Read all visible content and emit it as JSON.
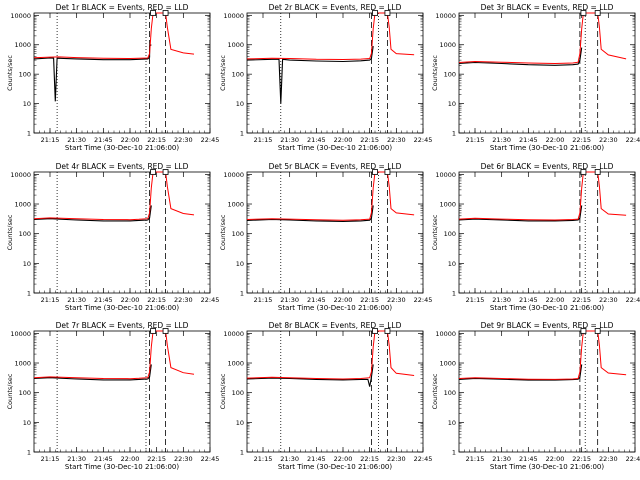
{
  "colors": {
    "events": "#000000",
    "lld": "#ff0000",
    "background": "#ffffff"
  },
  "chart_data": [
    {
      "type": "line",
      "title": "Det 1r BLACK = Events, RED = LLD",
      "xlabel": "Start Time (30-Dec-10 21:06:00)",
      "ylabel": "Counts/sec",
      "yscale": "log",
      "ylim": [
        1,
        12000
      ],
      "xlim": [
        "21:06",
        "22:45"
      ],
      "x_ticks": [
        "21:15",
        "21:30",
        "21:45",
        "22:00",
        "22:15",
        "22:30",
        "22:45"
      ],
      "y_ticks": [
        "1",
        "10",
        "100",
        "1000",
        "10000"
      ],
      "dotted_vlines": [
        "21:19",
        "22:09"
      ],
      "dashed_vlines": [
        "22:11",
        "22:20"
      ],
      "series": [
        {
          "name": "BLACK = Events",
          "x": [
            "21:06",
            "21:15",
            "21:17",
            "21:18",
            "21:19",
            "21:30",
            "21:45",
            "22:00",
            "22:05",
            "22:10",
            "22:11",
            "22:11",
            "22:12"
          ],
          "y": [
            330,
            355,
            350,
            12,
            350,
            330,
            310,
            310,
            320,
            330,
            380,
            900,
            1000
          ]
        },
        {
          "name": "RED = LLD",
          "x": [
            "21:06",
            "21:15",
            "21:20",
            "21:30",
            "21:45",
            "22:00",
            "22:05",
            "22:10",
            "22:11",
            "22:12",
            "22:13",
            "22:15",
            "22:18",
            "22:20",
            "22:21",
            "22:23",
            "22:30",
            "22:36"
          ],
          "y": [
            360,
            380,
            385,
            365,
            345,
            340,
            345,
            355,
            500,
            3500,
            12000,
            12000,
            12000,
            12000,
            4000,
            700,
            530,
            480
          ]
        }
      ]
    },
    {
      "type": "line",
      "title": "Det 2r BLACK = Events, RED = LLD",
      "xlabel": "Start Time (30-Dec-10 21:06:00)",
      "ylabel": "Counts/sec",
      "yscale": "log",
      "ylim": [
        1,
        12000
      ],
      "xlim": [
        "21:06",
        "22:45"
      ],
      "x_ticks": [
        "21:15",
        "21:30",
        "21:45",
        "22:00",
        "22:15",
        "22:30",
        "22:45"
      ],
      "y_ticks": [
        "1",
        "10",
        "100",
        "1000",
        "10000"
      ],
      "dotted_vlines": [
        "21:25",
        "22:20"
      ],
      "dashed_vlines": [
        "22:16",
        "22:25"
      ],
      "series": [
        {
          "name": "BLACK = Events",
          "x": [
            "21:06",
            "21:20",
            "21:24",
            "21:25",
            "21:26",
            "21:30",
            "21:45",
            "22:00",
            "22:10",
            "22:15",
            "22:16",
            "22:17"
          ],
          "y": [
            300,
            320,
            320,
            10,
            320,
            300,
            280,
            270,
            285,
            300,
            340,
            900
          ]
        },
        {
          "name": "RED = LLD",
          "x": [
            "21:06",
            "21:20",
            "21:30",
            "21:45",
            "22:00",
            "22:10",
            "22:15",
            "22:16",
            "22:17",
            "22:18",
            "22:25",
            "22:26",
            "22:27",
            "22:30",
            "22:40"
          ],
          "y": [
            330,
            345,
            340,
            320,
            315,
            325,
            340,
            500,
            3500,
            12000,
            12000,
            4000,
            700,
            500,
            460
          ]
        }
      ]
    },
    {
      "type": "line",
      "title": "Det 3r BLACK = Events, RED = LLD",
      "xlabel": "Start Time (30-Dec-10 21:06:00)",
      "ylabel": "Counts/sec",
      "yscale": "log",
      "ylim": [
        1,
        12000
      ],
      "xlim": [
        "21:06",
        "22:45"
      ],
      "x_ticks": [
        "21:15",
        "21:30",
        "21:45",
        "22:00",
        "22:15",
        "22:30",
        "22:45"
      ],
      "y_ticks": [
        "1",
        "10",
        "100",
        "1000",
        "10000"
      ],
      "dotted_vlines": [
        "22:17"
      ],
      "dashed_vlines": [
        "22:14",
        "22:24"
      ],
      "series": [
        {
          "name": "BLACK = Events",
          "x": [
            "21:06",
            "21:15",
            "21:30",
            "21:45",
            "22:00",
            "22:10",
            "22:13",
            "22:14",
            "22:15"
          ],
          "y": [
            230,
            250,
            230,
            210,
            200,
            210,
            220,
            300,
            800
          ]
        },
        {
          "name": "RED = LLD",
          "x": [
            "21:06",
            "21:15",
            "21:30",
            "21:45",
            "22:00",
            "22:10",
            "22:13",
            "22:14",
            "22:15",
            "22:16",
            "22:24",
            "22:25",
            "22:26",
            "22:30",
            "22:40"
          ],
          "y": [
            250,
            270,
            255,
            240,
            230,
            240,
            255,
            500,
            3500,
            12000,
            12000,
            4000,
            700,
            450,
            330
          ]
        }
      ]
    },
    {
      "type": "line",
      "title": "Det 4r BLACK = Events, RED = LLD",
      "xlabel": "Start Time (30-Dec-10 21:06:00)",
      "ylabel": "Counts/sec",
      "yscale": "log",
      "ylim": [
        1,
        12000
      ],
      "xlim": [
        "21:06",
        "22:45"
      ],
      "x_ticks": [
        "21:15",
        "21:30",
        "21:45",
        "22:00",
        "22:15",
        "22:30",
        "22:45"
      ],
      "y_ticks": [
        "1",
        "10",
        "100",
        "1000",
        "10000"
      ],
      "dotted_vlines": [
        "21:19",
        "22:09"
      ],
      "dashed_vlines": [
        "22:11",
        "22:20"
      ],
      "series": [
        {
          "name": "BLACK = Events",
          "x": [
            "21:06",
            "21:15",
            "21:30",
            "21:45",
            "22:00",
            "22:05",
            "22:10",
            "22:11",
            "22:12"
          ],
          "y": [
            300,
            320,
            290,
            270,
            270,
            280,
            290,
            340,
            900
          ]
        },
        {
          "name": "RED = LLD",
          "x": [
            "21:06",
            "21:15",
            "21:30",
            "21:45",
            "22:00",
            "22:05",
            "22:10",
            "22:11",
            "22:12",
            "22:13",
            "22:20",
            "22:21",
            "22:23",
            "22:30",
            "22:36"
          ],
          "y": [
            320,
            340,
            320,
            300,
            295,
            305,
            320,
            500,
            3500,
            12000,
            12000,
            4000,
            700,
            480,
            430
          ]
        }
      ]
    },
    {
      "type": "line",
      "title": "Det 5r BLACK = Events, RED = LLD",
      "xlabel": "Start Time (30-Dec-10 21:06:00)",
      "ylabel": "Counts/sec",
      "yscale": "log",
      "ylim": [
        1,
        12000
      ],
      "xlim": [
        "21:06",
        "22:45"
      ],
      "x_ticks": [
        "21:15",
        "21:30",
        "21:45",
        "22:00",
        "22:15",
        "22:30",
        "22:45"
      ],
      "y_ticks": [
        "1",
        "10",
        "100",
        "1000",
        "10000"
      ],
      "dotted_vlines": [
        "21:25",
        "22:20"
      ],
      "dashed_vlines": [
        "22:16",
        "22:25"
      ],
      "series": [
        {
          "name": "BLACK = Events",
          "x": [
            "21:06",
            "21:20",
            "21:30",
            "21:45",
            "22:00",
            "22:10",
            "22:15",
            "22:16",
            "22:17"
          ],
          "y": [
            280,
            300,
            290,
            270,
            260,
            270,
            285,
            330,
            900
          ]
        },
        {
          "name": "RED = LLD",
          "x": [
            "21:06",
            "21:20",
            "21:30",
            "21:45",
            "22:00",
            "22:10",
            "22:15",
            "22:16",
            "22:17",
            "22:18",
            "22:25",
            "22:26",
            "22:27",
            "22:30",
            "22:40"
          ],
          "y": [
            300,
            320,
            310,
            295,
            285,
            295,
            310,
            500,
            3500,
            12000,
            12000,
            4000,
            700,
            500,
            430
          ]
        }
      ]
    },
    {
      "type": "line",
      "title": "Det 6r BLACK = Events, RED = LLD",
      "xlabel": "Start Time (30-Dec-10 21:06:00)",
      "ylabel": "Counts/sec",
      "yscale": "log",
      "ylim": [
        1,
        12000
      ],
      "xlim": [
        "21:06",
        "22:45"
      ],
      "x_ticks": [
        "21:15",
        "21:30",
        "21:45",
        "22:00",
        "22:15",
        "22:30",
        "22:45"
      ],
      "y_ticks": [
        "1",
        "10",
        "100",
        "1000",
        "10000"
      ],
      "dotted_vlines": [
        "22:17"
      ],
      "dashed_vlines": [
        "22:14",
        "22:24"
      ],
      "series": [
        {
          "name": "BLACK = Events",
          "x": [
            "21:06",
            "21:15",
            "21:30",
            "21:45",
            "22:00",
            "22:10",
            "22:13",
            "22:14",
            "22:15"
          ],
          "y": [
            290,
            310,
            290,
            270,
            270,
            280,
            290,
            340,
            900
          ]
        },
        {
          "name": "RED = LLD",
          "x": [
            "21:06",
            "21:15",
            "21:30",
            "21:45",
            "22:00",
            "22:10",
            "22:13",
            "22:14",
            "22:15",
            "22:16",
            "22:24",
            "22:25",
            "22:26",
            "22:30",
            "22:40"
          ],
          "y": [
            310,
            330,
            310,
            295,
            290,
            300,
            310,
            500,
            3500,
            12000,
            12000,
            4000,
            700,
            460,
            420
          ]
        }
      ]
    },
    {
      "type": "line",
      "title": "Det 7r BLACK = Events, RED = LLD",
      "xlabel": "Start Time (30-Dec-10 21:06:00)",
      "ylabel": "Counts/sec",
      "yscale": "log",
      "ylim": [
        1,
        12000
      ],
      "xlim": [
        "21:06",
        "22:45"
      ],
      "x_ticks": [
        "21:15",
        "21:30",
        "21:45",
        "22:00",
        "22:15",
        "22:30",
        "22:45"
      ],
      "y_ticks": [
        "1",
        "10",
        "100",
        "1000",
        "10000"
      ],
      "dotted_vlines": [
        "21:19",
        "22:09"
      ],
      "dashed_vlines": [
        "22:11",
        "22:20"
      ],
      "series": [
        {
          "name": "BLACK = Events",
          "x": [
            "21:06",
            "21:15",
            "21:30",
            "21:45",
            "22:00",
            "22:05",
            "22:10",
            "22:11",
            "22:12"
          ],
          "y": [
            300,
            320,
            290,
            270,
            270,
            280,
            290,
            340,
            900
          ]
        },
        {
          "name": "RED = LLD",
          "x": [
            "21:06",
            "21:15",
            "21:30",
            "21:45",
            "22:00",
            "22:05",
            "22:10",
            "22:11",
            "22:12",
            "22:13",
            "22:20",
            "22:21",
            "22:23",
            "22:30",
            "22:36"
          ],
          "y": [
            320,
            340,
            320,
            300,
            295,
            305,
            320,
            500,
            3500,
            12000,
            12000,
            4000,
            700,
            470,
            420
          ]
        }
      ]
    },
    {
      "type": "line",
      "title": "Det 8r BLACK = Events, RED = LLD",
      "xlabel": "Start Time (30-Dec-10 21:06:00)",
      "ylabel": "Counts/sec",
      "yscale": "log",
      "ylim": [
        1,
        12000
      ],
      "xlim": [
        "21:06",
        "22:45"
      ],
      "x_ticks": [
        "21:15",
        "21:30",
        "21:45",
        "22:00",
        "22:15",
        "22:30",
        "22:45"
      ],
      "y_ticks": [
        "1",
        "10",
        "100",
        "1000",
        "10000"
      ],
      "dotted_vlines": [
        "21:25",
        "22:20"
      ],
      "dashed_vlines": [
        "22:16",
        "22:25"
      ],
      "series": [
        {
          "name": "BLACK = Events",
          "x": [
            "21:06",
            "21:20",
            "21:30",
            "21:45",
            "22:00",
            "22:10",
            "22:14",
            "22:15",
            "22:16",
            "22:17"
          ],
          "y": [
            290,
            310,
            300,
            280,
            270,
            280,
            280,
            160,
            330,
            900
          ]
        },
        {
          "name": "RED = LLD",
          "x": [
            "21:06",
            "21:20",
            "21:30",
            "21:45",
            "22:00",
            "22:10",
            "22:15",
            "22:16",
            "22:17",
            "22:18",
            "22:25",
            "22:26",
            "22:27",
            "22:30",
            "22:40"
          ],
          "y": [
            310,
            330,
            320,
            300,
            290,
            300,
            320,
            500,
            3500,
            12000,
            12000,
            4000,
            700,
            450,
            380
          ]
        }
      ]
    },
    {
      "type": "line",
      "title": "Det 9r BLACK = Events, RED = LLD",
      "xlabel": "Start Time (30-Dec-10 21:06:00)",
      "ylabel": "Counts/sec",
      "yscale": "log",
      "ylim": [
        1,
        12000
      ],
      "xlim": [
        "21:06",
        "22:45"
      ],
      "x_ticks": [
        "21:15",
        "21:30",
        "21:45",
        "22:00",
        "22:15",
        "22:30",
        "22:45"
      ],
      "y_ticks": [
        "1",
        "10",
        "100",
        "1000",
        "10000"
      ],
      "dotted_vlines": [
        "22:17"
      ],
      "dashed_vlines": [
        "22:14",
        "22:24"
      ],
      "series": [
        {
          "name": "BLACK = Events",
          "x": [
            "21:06",
            "21:15",
            "21:30",
            "21:45",
            "22:00",
            "22:10",
            "22:13",
            "22:14",
            "22:15"
          ],
          "y": [
            280,
            300,
            285,
            265,
            265,
            275,
            285,
            330,
            900
          ]
        },
        {
          "name": "RED = LLD",
          "x": [
            "21:06",
            "21:15",
            "21:30",
            "21:45",
            "22:00",
            "22:10",
            "22:13",
            "22:14",
            "22:15",
            "22:16",
            "22:24",
            "22:25",
            "22:26",
            "22:30",
            "22:40"
          ],
          "y": [
            300,
            320,
            300,
            285,
            280,
            290,
            300,
            500,
            3500,
            12000,
            12000,
            4000,
            700,
            460,
            400
          ]
        }
      ]
    }
  ]
}
